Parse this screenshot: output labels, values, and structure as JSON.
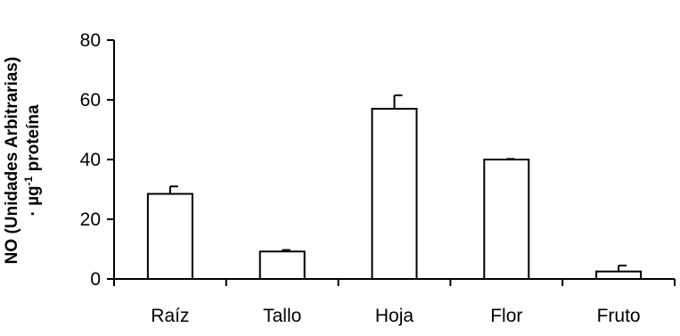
{
  "chart_data": {
    "type": "bar",
    "title": "",
    "xlabel": "",
    "ylabel_line1": "NO (Unidades Arbitrarias)",
    "ylabel_line2_prefix": "· µg",
    "ylabel_line2_sup": "-1",
    "ylabel_line2_suffix": " proteína",
    "categories": [
      "Raíz",
      "Tallo",
      "Hoja",
      "Flor",
      "Fruto"
    ],
    "values": [
      28.5,
      9.2,
      57,
      40,
      2.5
    ],
    "errors": [
      2.5,
      0.5,
      4.5,
      0.2,
      2.0
    ],
    "ylim": [
      0,
      80
    ],
    "yticks": [
      0,
      20,
      40,
      60,
      80
    ],
    "ytick_labels": [
      "0",
      "20",
      "40",
      "60",
      "80"
    ],
    "grid": false,
    "legend": "none",
    "bar_fill": "#ffffff",
    "bar_stroke": "#000000"
  }
}
